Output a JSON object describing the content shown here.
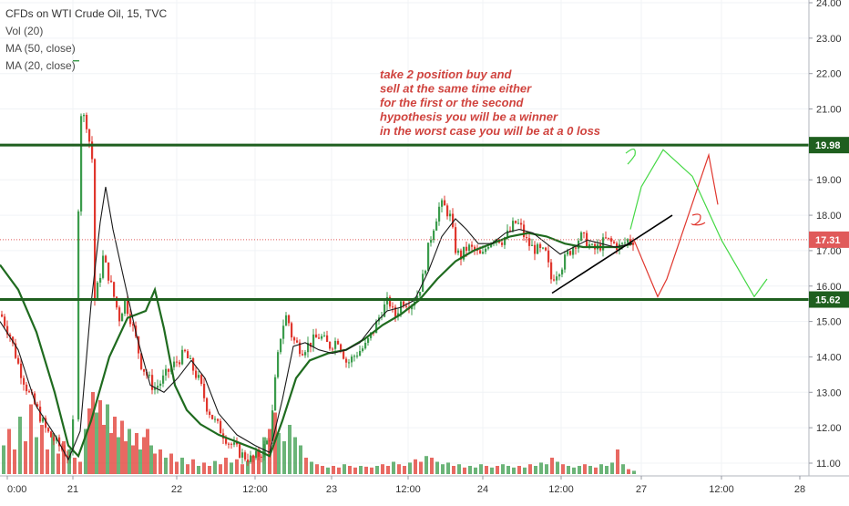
{
  "header": {
    "title": "CFDs on WTI Crude Oil, 15, TVC",
    "indicators": [
      "Vol (20)",
      "MA (50, close)",
      "MA (20, close)"
    ]
  },
  "annotation": {
    "lines": [
      "take 2 position buy and",
      "sell at the same time either",
      "for the first or the second",
      " hypothesis you will be a winner",
      " in the worst case you will be at a 0 loss"
    ],
    "color": "#d0443f"
  },
  "colors": {
    "up": "#3a9b4b",
    "down": "#e0372e",
    "ma50": "#1f6b1f",
    "ma20": "#1a1a1a",
    "level_line": "#1f5f1f",
    "price_line": "#e05a5a",
    "grid": "#f0f3f6"
  },
  "chart_data": {
    "type": "candlestick",
    "title": "CFDs on WTI Crude Oil, 15, TVC",
    "y_axis_ticks": [
      "24.00",
      "23.00",
      "22.00",
      "21.00",
      "20.00",
      "19.00",
      "18.00",
      "17.00",
      "16.00",
      "15.00",
      "14.00",
      "13.00",
      "12.00",
      "11.00"
    ],
    "x_axis_ticks": [
      "0:00",
      "21",
      "12:00",
      "22",
      "12:00",
      "23",
      "12:00",
      "24",
      "12:00",
      "27",
      "12:00",
      "28"
    ],
    "ylim": [
      10.75,
      24.1
    ],
    "price_labels": [
      {
        "label": "19.98",
        "value": 19.98,
        "kind": "level"
      },
      {
        "label": "17.31",
        "value": 17.31,
        "kind": "current"
      },
      {
        "label": "15.62",
        "value": 15.62,
        "kind": "level"
      }
    ],
    "horizontal_levels": [
      19.98,
      15.62
    ],
    "last_price": 17.31,
    "price_path": [
      [
        0,
        15.2
      ],
      [
        10,
        14.6
      ],
      [
        20,
        13.7
      ],
      [
        30,
        13.0
      ],
      [
        40,
        12.5
      ],
      [
        50,
        11.9
      ],
      [
        60,
        11.6
      ],
      [
        70,
        11.3
      ],
      [
        78,
        11.1
      ],
      [
        84,
        17.4
      ],
      [
        88,
        20.9
      ],
      [
        94,
        20.6
      ],
      [
        100,
        19.6
      ],
      [
        103,
        15.6
      ],
      [
        108,
        16.2
      ],
      [
        112,
        16.8
      ],
      [
        118,
        16.3
      ],
      [
        124,
        15.7
      ],
      [
        130,
        15.1
      ],
      [
        136,
        15.6
      ],
      [
        142,
        15.1
      ],
      [
        148,
        14.5
      ],
      [
        154,
        13.8
      ],
      [
        160,
        13.5
      ],
      [
        168,
        13.1
      ],
      [
        176,
        13.3
      ],
      [
        184,
        13.6
      ],
      [
        194,
        13.9
      ],
      [
        202,
        14.1
      ],
      [
        210,
        13.7
      ],
      [
        218,
        13.3
      ],
      [
        226,
        12.6
      ],
      [
        234,
        12.2
      ],
      [
        242,
        11.9
      ],
      [
        250,
        11.6
      ],
      [
        258,
        11.4
      ],
      [
        266,
        11.2
      ],
      [
        276,
        11.1
      ],
      [
        286,
        11.3
      ],
      [
        296,
        11.8
      ],
      [
        302,
        13.6
      ],
      [
        308,
        14.8
      ],
      [
        314,
        15.2
      ],
      [
        320,
        14.5
      ],
      [
        330,
        14.2
      ],
      [
        340,
        14.4
      ],
      [
        350,
        14.6
      ],
      [
        360,
        14.3
      ],
      [
        370,
        14.5
      ],
      [
        380,
        13.8
      ],
      [
        390,
        14.1
      ],
      [
        400,
        14.3
      ],
      [
        410,
        14.8
      ],
      [
        418,
        15.3
      ],
      [
        426,
        15.6
      ],
      [
        432,
        15.1
      ],
      [
        440,
        15.6
      ],
      [
        450,
        15.5
      ],
      [
        458,
        15.8
      ],
      [
        464,
        16.3
      ],
      [
        470,
        17.2
      ],
      [
        476,
        17.8
      ],
      [
        482,
        18.3
      ],
      [
        488,
        18.2
      ],
      [
        494,
        17.9
      ],
      [
        498,
        17.1
      ],
      [
        504,
        16.8
      ],
      [
        512,
        17.1
      ],
      [
        520,
        17.0
      ],
      [
        528,
        16.8
      ],
      [
        534,
        17.2
      ],
      [
        542,
        17.4
      ],
      [
        550,
        17.3
      ],
      [
        558,
        17.5
      ],
      [
        564,
        17.8
      ],
      [
        570,
        17.7
      ],
      [
        576,
        17.3
      ],
      [
        582,
        17.1
      ],
      [
        590,
        17.0
      ],
      [
        598,
        16.9
      ],
      [
        604,
        16.2
      ],
      [
        610,
        16.4
      ],
      [
        616,
        16.6
      ],
      [
        622,
        16.9
      ],
      [
        630,
        17.2
      ],
      [
        636,
        17.4
      ],
      [
        642,
        17.3
      ],
      [
        650,
        17.0
      ],
      [
        656,
        17.1
      ],
      [
        664,
        17.3
      ],
      [
        672,
        17.2
      ],
      [
        680,
        17.1
      ],
      [
        688,
        17.3
      ],
      [
        694,
        17.3
      ]
    ],
    "series": [
      {
        "name": "MA (50, close)",
        "values": [
          [
            0,
            16.6
          ],
          [
            20,
            15.9
          ],
          [
            40,
            14.7
          ],
          [
            60,
            13.0
          ],
          [
            75,
            11.5
          ],
          [
            86,
            11.2
          ],
          [
            100,
            12.2
          ],
          [
            120,
            14.0
          ],
          [
            140,
            15.1
          ],
          [
            160,
            15.3
          ],
          [
            170,
            15.9
          ],
          [
            180,
            14.8
          ],
          [
            192,
            13.2
          ],
          [
            205,
            12.5
          ],
          [
            220,
            12.1
          ],
          [
            240,
            11.8
          ],
          [
            260,
            11.6
          ],
          [
            280,
            11.4
          ],
          [
            296,
            11.2
          ],
          [
            310,
            12.2
          ],
          [
            325,
            13.4
          ],
          [
            340,
            13.9
          ],
          [
            360,
            14.1
          ],
          [
            380,
            14.2
          ],
          [
            400,
            14.5
          ],
          [
            420,
            14.9
          ],
          [
            440,
            15.2
          ],
          [
            460,
            15.6
          ],
          [
            480,
            16.2
          ],
          [
            500,
            16.7
          ],
          [
            520,
            17.0
          ],
          [
            540,
            17.2
          ],
          [
            560,
            17.4
          ],
          [
            580,
            17.5
          ],
          [
            600,
            17.4
          ],
          [
            620,
            17.2
          ],
          [
            640,
            17.1
          ],
          [
            660,
            17.1
          ],
          [
            680,
            17.1
          ],
          [
            694,
            17.2
          ]
        ]
      },
      {
        "name": "MA (20, close)",
        "values": [
          [
            0,
            15.0
          ],
          [
            20,
            14.2
          ],
          [
            40,
            12.6
          ],
          [
            60,
            11.8
          ],
          [
            75,
            11.1
          ],
          [
            88,
            11.9
          ],
          [
            100,
            15.5
          ],
          [
            110,
            17.8
          ],
          [
            116,
            18.8
          ],
          [
            124,
            17.6
          ],
          [
            136,
            16.2
          ],
          [
            150,
            14.6
          ],
          [
            165,
            13.2
          ],
          [
            180,
            13.0
          ],
          [
            195,
            13.4
          ],
          [
            210,
            13.9
          ],
          [
            225,
            13.4
          ],
          [
            240,
            12.4
          ],
          [
            260,
            11.8
          ],
          [
            280,
            11.5
          ],
          [
            296,
            11.3
          ],
          [
            310,
            12.8
          ],
          [
            322,
            14.3
          ],
          [
            335,
            14.4
          ],
          [
            350,
            14.2
          ],
          [
            365,
            14.1
          ],
          [
            380,
            14.2
          ],
          [
            395,
            14.4
          ],
          [
            410,
            14.9
          ],
          [
            425,
            15.3
          ],
          [
            440,
            15.4
          ],
          [
            455,
            15.6
          ],
          [
            470,
            16.4
          ],
          [
            485,
            17.4
          ],
          [
            500,
            17.9
          ],
          [
            512,
            17.6
          ],
          [
            525,
            17.2
          ],
          [
            540,
            17.2
          ],
          [
            555,
            17.5
          ],
          [
            570,
            17.6
          ],
          [
            585,
            17.5
          ],
          [
            600,
            17.2
          ],
          [
            615,
            16.9
          ],
          [
            630,
            17.1
          ],
          [
            645,
            17.3
          ],
          [
            660,
            17.2
          ],
          [
            675,
            17.1
          ],
          [
            694,
            17.2
          ]
        ]
      }
    ],
    "volume_profile": [
      [
        2,
        0.35
      ],
      [
        8,
        0.55
      ],
      [
        14,
        0.3
      ],
      [
        20,
        0.7
      ],
      [
        26,
        0.4
      ],
      [
        32,
        0.85
      ],
      [
        38,
        0.45
      ],
      [
        44,
        0.6
      ],
      [
        50,
        0.3
      ],
      [
        56,
        0.5
      ],
      [
        62,
        0.25
      ],
      [
        68,
        0.4
      ],
      [
        74,
        0.3
      ],
      [
        80,
        0.2
      ],
      [
        86,
        0.15
      ],
      [
        92,
        0.55
      ],
      [
        96,
        0.8
      ],
      [
        100,
        1.0
      ],
      [
        104,
        0.75
      ],
      [
        108,
        0.9
      ],
      [
        112,
        0.6
      ],
      [
        116,
        0.85
      ],
      [
        120,
        0.5
      ],
      [
        124,
        0.7
      ],
      [
        128,
        0.45
      ],
      [
        132,
        0.65
      ],
      [
        136,
        0.4
      ],
      [
        140,
        0.55
      ],
      [
        144,
        0.35
      ],
      [
        148,
        0.5
      ],
      [
        152,
        0.3
      ],
      [
        156,
        0.45
      ],
      [
        160,
        0.55
      ],
      [
        164,
        0.35
      ],
      [
        168,
        0.25
      ],
      [
        174,
        0.3
      ],
      [
        180,
        0.2
      ],
      [
        186,
        0.25
      ],
      [
        192,
        0.15
      ],
      [
        198,
        0.2
      ],
      [
        204,
        0.12
      ],
      [
        210,
        0.18
      ],
      [
        216,
        0.1
      ],
      [
        222,
        0.14
      ],
      [
        228,
        0.1
      ],
      [
        234,
        0.16
      ],
      [
        240,
        0.12
      ],
      [
        246,
        0.2
      ],
      [
        252,
        0.14
      ],
      [
        258,
        0.18
      ],
      [
        264,
        0.12
      ],
      [
        270,
        0.16
      ],
      [
        276,
        0.22
      ],
      [
        282,
        0.3
      ],
      [
        288,
        0.45
      ],
      [
        294,
        0.55
      ],
      [
        300,
        0.75
      ],
      [
        304,
        0.5
      ],
      [
        310,
        0.4
      ],
      [
        316,
        0.6
      ],
      [
        322,
        0.45
      ],
      [
        328,
        0.35
      ],
      [
        334,
        0.2
      ],
      [
        340,
        0.15
      ],
      [
        346,
        0.12
      ],
      [
        352,
        0.1
      ],
      [
        358,
        0.08
      ],
      [
        364,
        0.1
      ],
      [
        370,
        0.08
      ],
      [
        376,
        0.12
      ],
      [
        382,
        0.1
      ],
      [
        388,
        0.08
      ],
      [
        394,
        0.1
      ],
      [
        400,
        0.09
      ],
      [
        406,
        0.08
      ],
      [
        412,
        0.1
      ],
      [
        418,
        0.12
      ],
      [
        424,
        0.1
      ],
      [
        430,
        0.15
      ],
      [
        436,
        0.12
      ],
      [
        442,
        0.1
      ],
      [
        448,
        0.14
      ],
      [
        454,
        0.18
      ],
      [
        460,
        0.15
      ],
      [
        466,
        0.22
      ],
      [
        472,
        0.2
      ],
      [
        478,
        0.15
      ],
      [
        484,
        0.12
      ],
      [
        490,
        0.14
      ],
      [
        496,
        0.1
      ],
      [
        502,
        0.12
      ],
      [
        508,
        0.08
      ],
      [
        514,
        0.1
      ],
      [
        520,
        0.08
      ],
      [
        526,
        0.12
      ],
      [
        532,
        0.1
      ],
      [
        538,
        0.08
      ],
      [
        544,
        0.1
      ],
      [
        550,
        0.12
      ],
      [
        556,
        0.1
      ],
      [
        562,
        0.08
      ],
      [
        568,
        0.1
      ],
      [
        574,
        0.08
      ],
      [
        580,
        0.12
      ],
      [
        586,
        0.1
      ],
      [
        592,
        0.14
      ],
      [
        598,
        0.12
      ],
      [
        604,
        0.2
      ],
      [
        610,
        0.15
      ],
      [
        616,
        0.12
      ],
      [
        622,
        0.1
      ],
      [
        628,
        0.08
      ],
      [
        634,
        0.1
      ],
      [
        640,
        0.12
      ],
      [
        646,
        0.1
      ],
      [
        652,
        0.08
      ],
      [
        658,
        0.12
      ],
      [
        664,
        0.1
      ],
      [
        670,
        0.14
      ],
      [
        676,
        0.3
      ],
      [
        682,
        0.12
      ],
      [
        688,
        0.06
      ],
      [
        694,
        0.04
      ]
    ],
    "drawings": {
      "trendline": [
        [
          606,
          15.8
        ],
        [
          738,
          18.0
        ]
      ],
      "red_scenario": [
        [
          696,
          17.3
        ],
        [
          722,
          15.7
        ],
        [
          732,
          16.2
        ],
        [
          778,
          19.7
        ],
        [
          788,
          18.3
        ]
      ],
      "green_scenario": [
        [
          692,
          17.6
        ],
        [
          704,
          18.8
        ],
        [
          728,
          19.85
        ],
        [
          760,
          19.1
        ],
        [
          792,
          17.3
        ],
        [
          828,
          15.7
        ],
        [
          842,
          16.2
        ]
      ],
      "label_1": [
        [
          687,
          19.7
        ],
        [
          695,
          19.2
        ]
      ],
      "label_2": [
        [
          760,
          18.0
        ],
        [
          770,
          17.4
        ]
      ]
    },
    "grid": true,
    "legend_position": "top-left"
  }
}
